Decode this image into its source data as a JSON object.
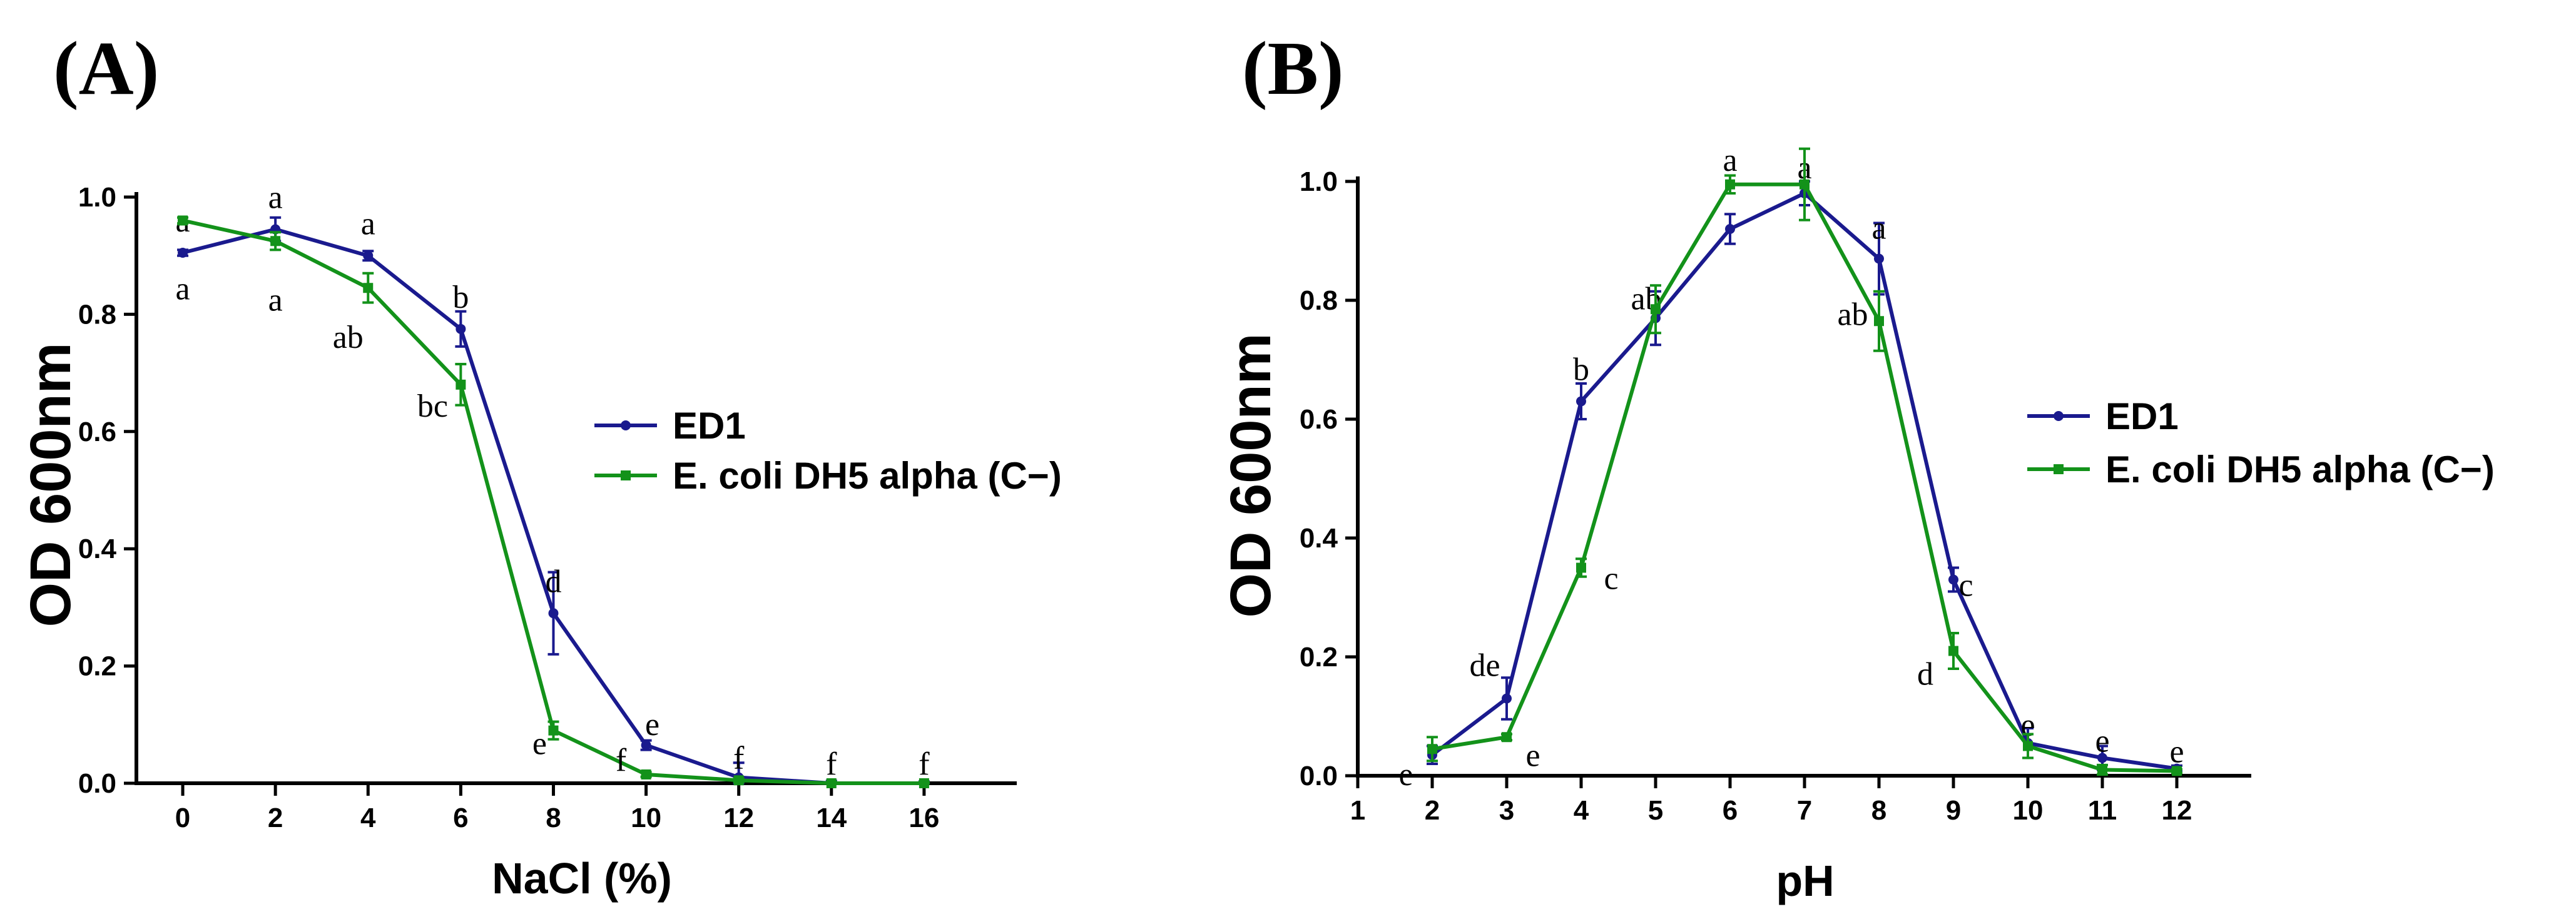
{
  "figure": {
    "colors": {
      "ed1": "#1a1a8e",
      "ecoli": "#13921a",
      "axis": "#000000"
    }
  },
  "chart_data": [
    {
      "type": "line",
      "panel_label": "(A)",
      "xlabel": "NaCl (%)",
      "ylabel": "OD 600nm",
      "x": [
        0,
        2,
        4,
        6,
        8,
        10,
        12,
        14,
        16
      ],
      "x_ticks": [
        "0",
        "2",
        "4",
        "6",
        "8",
        "10",
        "12",
        "14",
        "16"
      ],
      "xlim": [
        -1,
        18
      ],
      "ylim": [
        0,
        1.0
      ],
      "y_ticks": [
        "0.0",
        "0.2",
        "0.4",
        "0.6",
        "0.8",
        "1.0"
      ],
      "legend_position": "center-right",
      "series": [
        {
          "name": "ED1",
          "color": "#1a1a8e",
          "marker": "circle",
          "values": [
            0.905,
            0.945,
            0.9,
            0.775,
            0.29,
            0.065,
            0.01,
            0.0,
            0.0
          ],
          "errors": [
            0.005,
            0.02,
            0.008,
            0.03,
            0.07,
            0.008,
            0.025,
            0.004,
            0.003
          ],
          "letters": [
            "a",
            "a",
            "a",
            "b",
            "d",
            "e",
            "f",
            "f",
            "f"
          ]
        },
        {
          "name": "E. coli DH5 alpha (C−)",
          "color": "#13921a",
          "marker": "square",
          "values": [
            0.96,
            0.925,
            0.845,
            0.68,
            0.09,
            0.015,
            0.005,
            0.0,
            0.0
          ],
          "errors": [
            0.005,
            0.015,
            0.025,
            0.035,
            0.015,
            0.004,
            0.003,
            0.002,
            0.002
          ],
          "letters": [
            "a",
            "a",
            "ab",
            "bc",
            "e",
            "f",
            "",
            "",
            ""
          ]
        }
      ]
    },
    {
      "type": "line",
      "panel_label": "(B)",
      "xlabel": "pH",
      "ylabel": "OD  600nm",
      "x": [
        2,
        3,
        4,
        5,
        6,
        7,
        8,
        9,
        10,
        11,
        12
      ],
      "x_ticks": [
        "1",
        "2",
        "3",
        "4",
        "5",
        "6",
        "7",
        "8",
        "9",
        "10",
        "11",
        "12"
      ],
      "xlim": [
        1,
        13
      ],
      "ylim": [
        0,
        1.0
      ],
      "y_ticks": [
        "0.0",
        "0.2",
        "0.4",
        "0.6",
        "0.8",
        "1.0"
      ],
      "legend_position": "center-right",
      "series": [
        {
          "name": "ED1",
          "color": "#1a1a8e",
          "marker": "circle",
          "values": [
            0.035,
            0.13,
            0.63,
            0.77,
            0.92,
            0.98,
            0.87,
            0.33,
            0.055,
            0.03,
            0.012
          ],
          "errors": [
            0.015,
            0.035,
            0.03,
            0.045,
            0.025,
            0.02,
            0.06,
            0.02,
            0.025,
            0.02,
            0.005
          ],
          "letters": [
            "e",
            "de",
            "b",
            "ab",
            "",
            "a",
            "a",
            "c",
            "e",
            "e",
            "e"
          ]
        },
        {
          "name": "E. coli DH5 alpha (C−)",
          "color": "#13921a",
          "marker": "square",
          "values": [
            0.045,
            0.065,
            0.35,
            0.785,
            0.995,
            0.995,
            0.765,
            0.21,
            0.05,
            0.01,
            0.008
          ],
          "errors": [
            0.02,
            0.005,
            0.015,
            0.04,
            0.015,
            0.06,
            0.05,
            0.03,
            0.02,
            0.008,
            0.003
          ],
          "letters": [
            "",
            "e",
            "c",
            "",
            "a",
            "",
            "ab",
            "d",
            "",
            "",
            ""
          ]
        }
      ]
    }
  ]
}
